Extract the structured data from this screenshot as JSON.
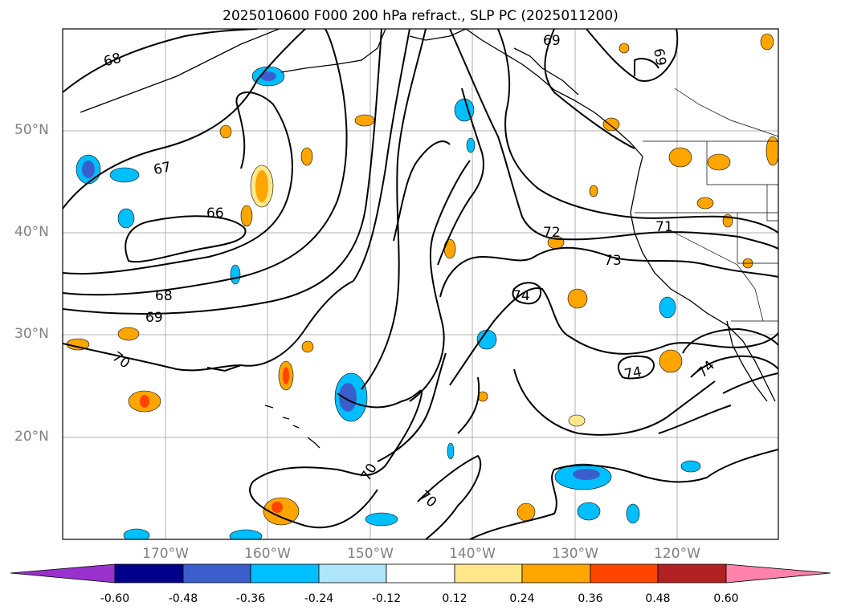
{
  "title": "2025010600 F000 200 hPa refract., SLP PC (2025011200)",
  "lat_labels": [
    "50°N",
    "40°N",
    "30°N",
    "20°N"
  ],
  "lon_labels": [
    "170°W",
    "160°W",
    "150°W",
    "140°W",
    "130°W",
    "120°W"
  ],
  "contour_labels": [
    "68",
    "67",
    "66",
    "68",
    "69",
    "70",
    "70",
    "70",
    "69",
    "69",
    "71",
    "72",
    "73",
    "74",
    "74",
    "74"
  ],
  "colorbar": {
    "tick_labels": [
      "-0.60",
      "-0.48",
      "-0.36",
      "-0.24",
      "-0.12",
      "0.12",
      "0.24",
      "0.36",
      "0.48",
      "0.60"
    ],
    "colors": [
      "#9932cc",
      "#00008b",
      "#3a5fcd",
      "#00bfff",
      "#aee5fa",
      "#ffffff",
      "#ffe78a",
      "#ffa500",
      "#ff4500",
      "#b22222",
      "#ff82ab"
    ]
  }
}
